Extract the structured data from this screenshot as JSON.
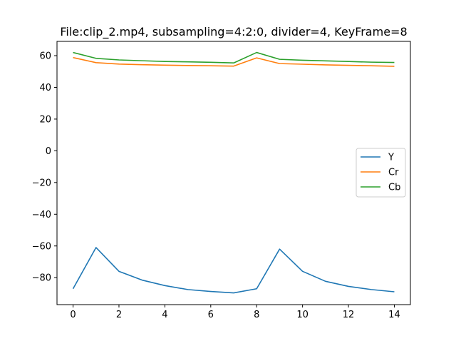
{
  "chart_data": {
    "type": "line",
    "title": "File:clip_2.mp4, subsampling=4:2:0, divider=4, KeyFrame=8",
    "xlabel": "",
    "ylabel": "",
    "x": [
      0,
      1,
      2,
      3,
      4,
      5,
      6,
      7,
      8,
      9,
      10,
      11,
      12,
      13,
      14
    ],
    "xlim": [
      -0.7,
      14.7
    ],
    "ylim": [
      -97,
      69
    ],
    "xticks": [
      0,
      2,
      4,
      6,
      8,
      10,
      12,
      14
    ],
    "yticks": [
      -80,
      -60,
      -40,
      -20,
      0,
      20,
      40,
      60
    ],
    "ytick_labels": [
      "−80",
      "−60",
      "−40",
      "−20",
      "0",
      "20",
      "40",
      "60"
    ],
    "grid": false,
    "legend_position": "center-right",
    "series": [
      {
        "name": "Y",
        "color": "#1f77b4",
        "values": [
          -87.0,
          -61.0,
          -76.0,
          -81.5,
          -85.0,
          -87.5,
          -88.7,
          -89.6,
          -87.0,
          -62.0,
          -76.0,
          -82.3,
          -85.5,
          -87.5,
          -88.9
        ]
      },
      {
        "name": "Cr",
        "color": "#ff7f0e",
        "values": [
          58.8,
          55.6,
          54.7,
          54.3,
          54.0,
          53.8,
          53.6,
          53.4,
          58.6,
          55.0,
          54.6,
          54.2,
          53.9,
          53.6,
          53.3
        ]
      },
      {
        "name": "Cb",
        "color": "#2ca02c",
        "values": [
          62.0,
          58.3,
          57.3,
          56.8,
          56.3,
          56.1,
          55.8,
          55.4,
          62.0,
          57.7,
          57.1,
          56.7,
          56.3,
          55.9,
          55.7
        ]
      }
    ]
  }
}
